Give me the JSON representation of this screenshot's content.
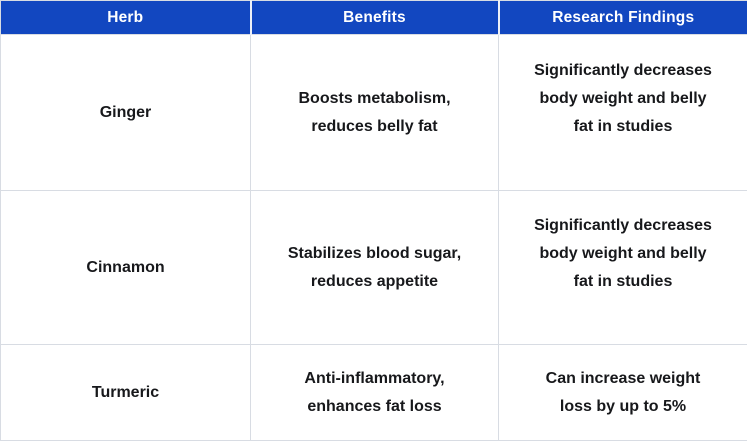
{
  "colors": {
    "header_bg": "#1247c0",
    "header_text": "#ffffff",
    "body_text": "#17181b",
    "grid_line": "#d8dce3",
    "background": "#ffffff"
  },
  "table": {
    "columns": [
      {
        "label": "Herb"
      },
      {
        "label": "Benefits"
      },
      {
        "label": "Research Findings"
      }
    ],
    "rows": [
      {
        "cells": [
          "Ginger",
          "Boosts metabolism,\nreduces belly fat",
          "Significantly decreases\nbody weight and belly\nfat in studies"
        ]
      },
      {
        "cells": [
          "Cinnamon",
          "Stabilizes blood sugar,\nreduces appetite",
          "Significantly decreases\nbody weight and belly\nfat in studies"
        ]
      },
      {
        "cells": [
          "Turmeric",
          "Anti-inflammatory,\nenhances fat loss",
          "Can increase weight\nloss by up to 5%"
        ]
      }
    ]
  },
  "chart_data": {
    "type": "table",
    "title": "",
    "columns": [
      "Herb",
      "Benefits",
      "Research Findings"
    ],
    "rows": [
      [
        "Ginger",
        "Boosts metabolism, reduces belly fat",
        "Significantly decreases body weight and belly fat in studies"
      ],
      [
        "Cinnamon",
        "Stabilizes blood sugar, reduces appetite",
        "Significantly decreases body weight and belly fat in studies"
      ],
      [
        "Turmeric",
        "Anti-inflammatory, enhances fat loss",
        "Can increase weight loss by up to 5%"
      ]
    ],
    "layout": {
      "header_position": "top",
      "grid": true,
      "header_style": "blue-bar-white-text",
      "cell_text_align": "center"
    }
  }
}
